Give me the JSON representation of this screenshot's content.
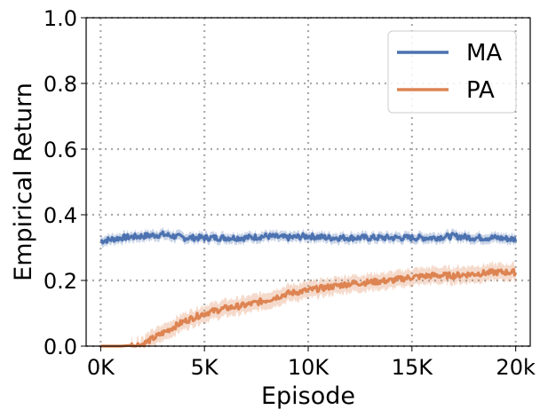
{
  "chart_data": {
    "type": "line",
    "title": "",
    "xlabel": "Episode",
    "ylabel": "Empirical Return",
    "xlim": [
      -700,
      20700
    ],
    "ylim": [
      0.0,
      1.0
    ],
    "x_ticks": [
      0,
      5000,
      10000,
      15000,
      20000
    ],
    "x_tick_labels": [
      "0K",
      "5K",
      "10K",
      "15K",
      "20k"
    ],
    "y_ticks": [
      0.0,
      0.2,
      0.4,
      0.6,
      0.8,
      1.0
    ],
    "y_tick_labels": [
      "0.0",
      "0.2",
      "0.4",
      "0.6",
      "0.8",
      "1.0"
    ],
    "grid": true,
    "legend_position": "top-right",
    "series": [
      {
        "name": "MA",
        "color": "#4c72b0",
        "x": [
          0,
          1000,
          2000,
          3000,
          4000,
          5000,
          6000,
          7000,
          8000,
          9000,
          10000,
          11000,
          12000,
          13000,
          14000,
          15000,
          16000,
          17000,
          18000,
          19000,
          20000
        ],
        "values": [
          0.32,
          0.33,
          0.335,
          0.34,
          0.33,
          0.33,
          0.33,
          0.33,
          0.335,
          0.33,
          0.335,
          0.33,
          0.33,
          0.33,
          0.33,
          0.33,
          0.33,
          0.335,
          0.33,
          0.33,
          0.325
        ],
        "band": 0.015
      },
      {
        "name": "PA",
        "color": "#dd8452",
        "x": [
          0,
          1000,
          2000,
          3000,
          4000,
          5000,
          6000,
          7000,
          8000,
          9000,
          10000,
          11000,
          12000,
          13000,
          14000,
          15000,
          16000,
          17000,
          18000,
          19000,
          20000
        ],
        "values": [
          0.0,
          0.0,
          0.005,
          0.04,
          0.075,
          0.1,
          0.115,
          0.125,
          0.14,
          0.16,
          0.17,
          0.18,
          0.19,
          0.195,
          0.2,
          0.21,
          0.215,
          0.215,
          0.22,
          0.225,
          0.225
        ],
        "band": 0.025
      }
    ]
  }
}
